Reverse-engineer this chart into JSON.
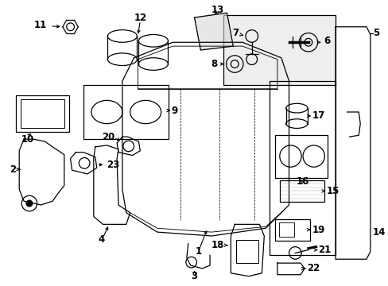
{
  "bg_color": "#ffffff",
  "line_color": "#000000",
  "fig_width": 4.89,
  "fig_height": 3.6,
  "dpi": 100,
  "font_size": 8.5,
  "line_width": 0.9,
  "gray_fill": "#d8d8d8",
  "light_gray": "#eeeeee"
}
